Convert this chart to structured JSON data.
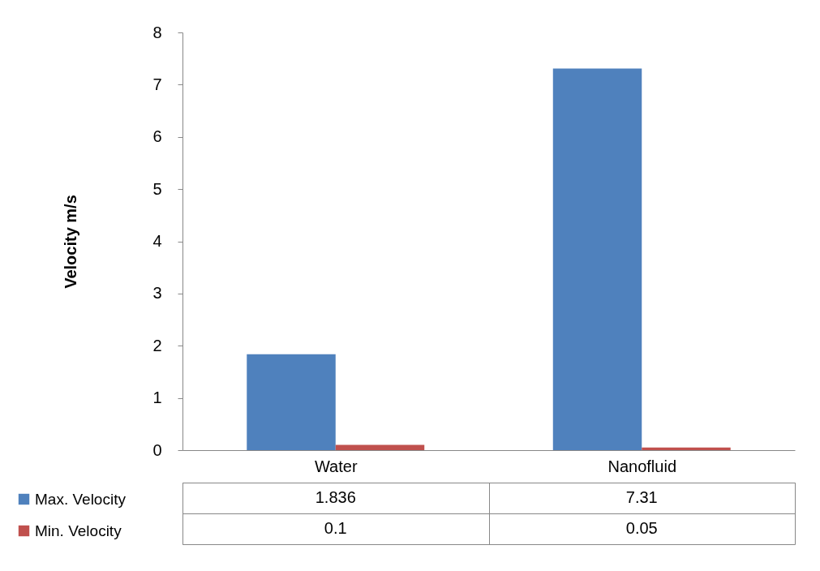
{
  "chart_data": {
    "type": "bar",
    "categories": [
      "Water",
      "Nanofluid"
    ],
    "series": [
      {
        "name": "Max. Velocity",
        "color": "#4f81bd",
        "values": [
          1.836,
          7.31
        ]
      },
      {
        "name": "Min. Velocity",
        "color": "#c0504d",
        "values": [
          0.1,
          0.05
        ]
      }
    ],
    "ylabel": "Velocity m/s",
    "ylim": [
      0,
      8
    ],
    "yticks": [
      0,
      1,
      2,
      3,
      4,
      5,
      6,
      7,
      8
    ],
    "data_labels": true,
    "legend": "bottom left"
  }
}
